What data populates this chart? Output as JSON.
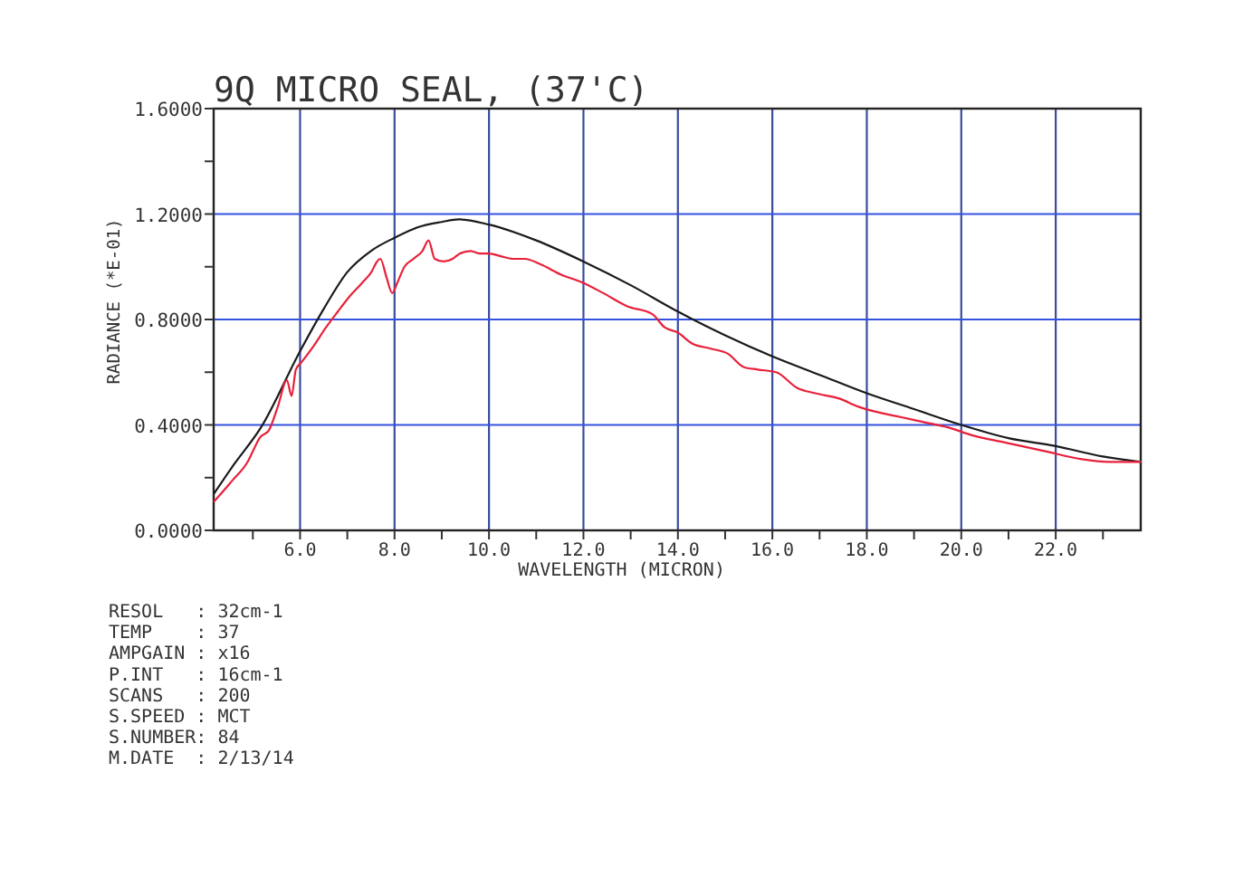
{
  "chart_data": {
    "type": "line",
    "title": "9Q MICRO SEAL, (37'C)",
    "xlabel": "WAVELENGTH (MICRON)",
    "ylabel": "RADIANCE (*E-01)",
    "xlim": [
      4.17,
      23.8
    ],
    "ylim": [
      0,
      1.6
    ],
    "xticks": [
      {
        "value": 5,
        "label": null
      },
      {
        "value": 6,
        "label": "6.0"
      },
      {
        "value": 7,
        "label": null
      },
      {
        "value": 8,
        "label": "8.0"
      },
      {
        "value": 9,
        "label": null
      },
      {
        "value": 10,
        "label": "10.0"
      },
      {
        "value": 11,
        "label": null
      },
      {
        "value": 12,
        "label": "12.0"
      },
      {
        "value": 13,
        "label": null
      },
      {
        "value": 14,
        "label": "14.0"
      },
      {
        "value": 15,
        "label": null
      },
      {
        "value": 16,
        "label": "16.0"
      },
      {
        "value": 17,
        "label": null
      },
      {
        "value": 18,
        "label": "18.0"
      },
      {
        "value": 19,
        "label": null
      },
      {
        "value": 20,
        "label": "20.0"
      },
      {
        "value": 21,
        "label": null
      },
      {
        "value": 22,
        "label": "22.0"
      },
      {
        "value": 23,
        "label": null
      }
    ],
    "yticks": [
      {
        "value": 0,
        "label": "0.0000"
      },
      {
        "value": 0.2,
        "label": null
      },
      {
        "value": 0.4,
        "label": "0.4000"
      },
      {
        "value": 0.6,
        "label": null
      },
      {
        "value": 0.8,
        "label": "0.8000"
      },
      {
        "value": 1.0,
        "label": null
      },
      {
        "value": 1.2,
        "label": "1.2000"
      },
      {
        "value": 1.4,
        "label": null
      },
      {
        "value": 1.6,
        "label": "1.6000"
      }
    ],
    "grid": true,
    "series": [
      {
        "color": "#1a1a1a",
        "x": [
          4.18,
          4.6,
          5.17,
          6.0,
          6.5,
          7.0,
          7.5,
          8.0,
          8.5,
          9.0,
          9.36,
          10.0,
          11.0,
          12.0,
          13.0,
          14.0,
          15.0,
          16.0,
          17.0,
          18.0,
          19.0,
          20.0,
          21.0,
          22.0,
          23.0,
          23.8
        ],
        "values": [
          0.14,
          0.25,
          0.39,
          0.68,
          0.84,
          0.98,
          1.06,
          1.11,
          1.15,
          1.17,
          1.18,
          1.16,
          1.1,
          1.02,
          0.93,
          0.83,
          0.74,
          0.66,
          0.59,
          0.52,
          0.46,
          0.4,
          0.35,
          0.32,
          0.28,
          0.26
        ]
      },
      {
        "color": "#e8203a",
        "x": [
          4.18,
          4.57,
          4.89,
          5.08,
          5.14,
          5.34,
          5.53,
          5.72,
          5.82,
          5.91,
          6.04,
          6.29,
          6.55,
          6.8,
          7.06,
          7.32,
          7.51,
          7.63,
          7.7,
          7.83,
          7.95,
          8.06,
          8.21,
          8.4,
          8.59,
          8.72,
          8.85,
          9.04,
          9.23,
          9.38,
          9.61,
          9.81,
          10.0,
          10.25,
          10.51,
          10.76,
          11.08,
          11.53,
          11.98,
          12.42,
          12.93,
          13.46,
          13.72,
          14.0,
          14.29,
          14.68,
          15.06,
          15.39,
          15.69,
          16.08,
          16.53,
          16.91,
          17.42,
          17.81,
          18.19,
          18.71,
          19.22,
          19.73,
          20.24,
          21.01,
          21.78,
          22.55,
          23.13,
          23.45,
          23.8
        ],
        "values": [
          0.11,
          0.19,
          0.26,
          0.33,
          0.35,
          0.38,
          0.47,
          0.57,
          0.51,
          0.61,
          0.64,
          0.7,
          0.77,
          0.83,
          0.89,
          0.94,
          0.98,
          1.02,
          1.03,
          0.96,
          0.9,
          0.94,
          1.0,
          1.03,
          1.06,
          1.1,
          1.03,
          1.02,
          1.03,
          1.05,
          1.06,
          1.05,
          1.05,
          1.04,
          1.03,
          1.03,
          1.01,
          0.97,
          0.94,
          0.9,
          0.85,
          0.82,
          0.77,
          0.75,
          0.71,
          0.69,
          0.67,
          0.62,
          0.61,
          0.6,
          0.54,
          0.52,
          0.5,
          0.47,
          0.45,
          0.43,
          0.41,
          0.39,
          0.36,
          0.33,
          0.3,
          0.27,
          0.26,
          0.26,
          0.26
        ]
      }
    ],
    "annotations": [
      "RESOL   : 32cm-1",
      "TEMP    : 37",
      "AMPGAIN : x16",
      "P.INT   : 16cm-1",
      "SCANS   : 200",
      "S.SPEED : MCT",
      "S.NUMBER: 84",
      "M.DATE  : 2/13/14"
    ]
  }
}
